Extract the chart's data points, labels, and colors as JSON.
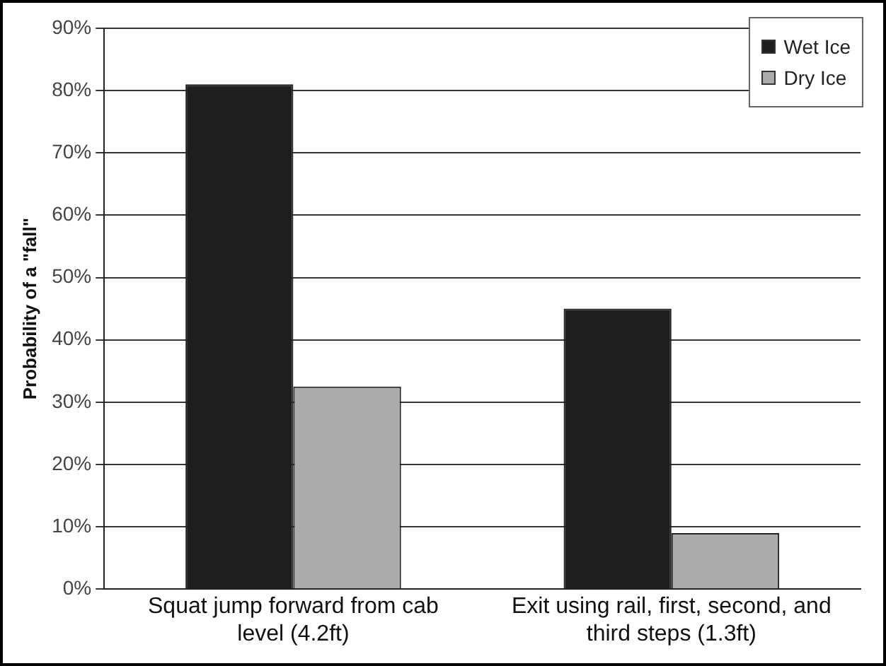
{
  "chart_data": {
    "type": "bar",
    "ylabel": "Probability of a \"fall\"",
    "categories": [
      "Squat jump forward from cab level (4.2ft)",
      "Exit using rail, first, second, and third steps (1.3ft)"
    ],
    "series": [
      {
        "name": "Wet Ice",
        "color": "#1e1e1e",
        "values": [
          81,
          45
        ]
      },
      {
        "name": "Dry Ice",
        "color": "#ababab",
        "values": [
          32.5,
          9
        ]
      }
    ],
    "ylim": [
      0,
      90
    ],
    "yticks": [
      {
        "value": 0,
        "label": "0%"
      },
      {
        "value": 10,
        "label": "10%"
      },
      {
        "value": 20,
        "label": "20%"
      },
      {
        "value": 30,
        "label": "30%"
      },
      {
        "value": 40,
        "label": "40%"
      },
      {
        "value": 50,
        "label": "50%"
      },
      {
        "value": 60,
        "label": "60%"
      },
      {
        "value": 70,
        "label": "70%"
      },
      {
        "value": 80,
        "label": "80%"
      },
      {
        "value": 90,
        "label": "90%"
      }
    ],
    "grid": "y",
    "legend": "top right"
  }
}
